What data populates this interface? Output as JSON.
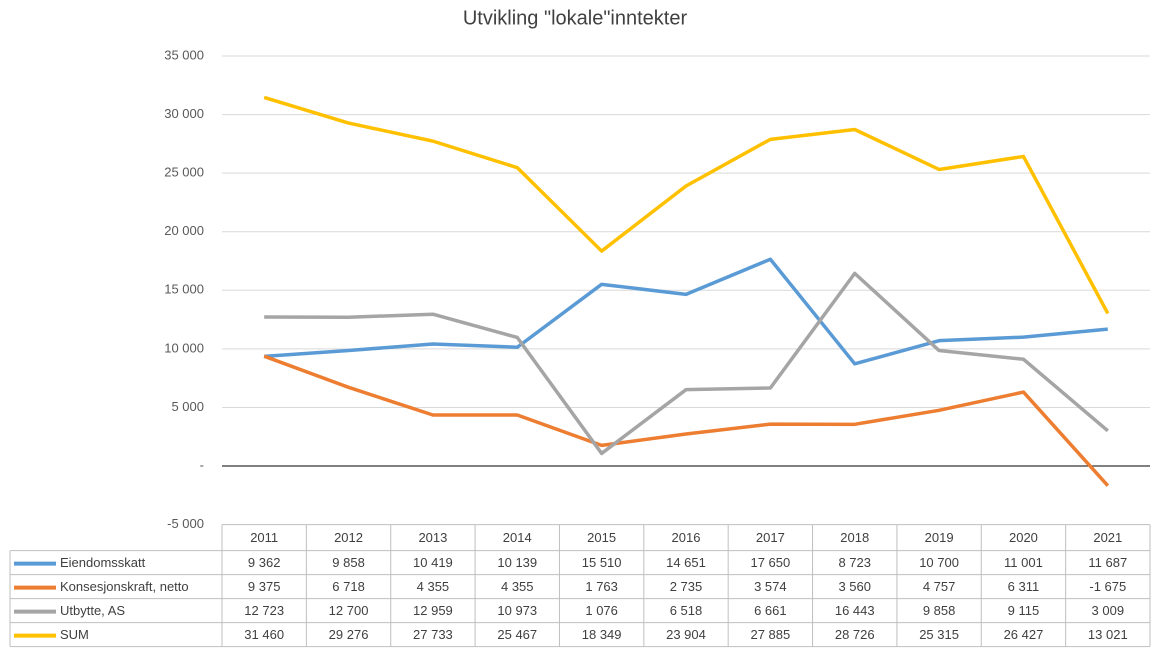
{
  "chart_data": {
    "type": "line",
    "title": "Utvikling \"lokale\"inntekter",
    "categories": [
      "2011",
      "2012",
      "2013",
      "2014",
      "2015",
      "2016",
      "2017",
      "2018",
      "2019",
      "2020",
      "2021"
    ],
    "series": [
      {
        "name": "Eiendomsskatt",
        "color": "#5b9bd5",
        "values": [
          9362,
          9858,
          10419,
          10139,
          15510,
          14651,
          17650,
          8723,
          10700,
          11001,
          11687
        ],
        "value_labels": [
          "9 362",
          "9 858",
          "10 419",
          "10 139",
          "15 510",
          "14 651",
          "17 650",
          "8 723",
          "10 700",
          "11 001",
          "11 687"
        ]
      },
      {
        "name": "Konsesjonskraft, netto",
        "color": "#ed7d31",
        "values": [
          9375,
          6718,
          4355,
          4355,
          1763,
          2735,
          3574,
          3560,
          4757,
          6311,
          -1675
        ],
        "value_labels": [
          "9 375",
          "6 718",
          "4 355",
          "4 355",
          "1 763",
          "2 735",
          "3 574",
          "3 560",
          "4 757",
          "6 311",
          "-1 675"
        ]
      },
      {
        "name": "Utbytte, AS",
        "color": "#a5a5a5",
        "values": [
          12723,
          12700,
          12959,
          10973,
          1076,
          6518,
          6661,
          16443,
          9858,
          9115,
          3009
        ],
        "value_labels": [
          "12 723",
          "12 700",
          "12 959",
          "10 973",
          "1 076",
          "6 518",
          "6 661",
          "16 443",
          "9 858",
          "9 115",
          "3 009"
        ]
      },
      {
        "name": "SUM",
        "color": "#ffc000",
        "values": [
          31460,
          29276,
          27733,
          25467,
          18349,
          23904,
          27885,
          28726,
          25315,
          26427,
          13021
        ],
        "value_labels": [
          "31 460",
          "29 276",
          "27 733",
          "25 467",
          "18 349",
          "23 904",
          "27 885",
          "28 726",
          "25 315",
          "26 427",
          "13 021"
        ]
      }
    ],
    "ylim": [
      -5000,
      35000
    ],
    "yticks": [
      {
        "value": -5000,
        "label": "-5 000"
      },
      {
        "value": 0,
        "label": "-"
      },
      {
        "value": 5000,
        "label": "5 000"
      },
      {
        "value": 10000,
        "label": "10 000"
      },
      {
        "value": 15000,
        "label": "15 000"
      },
      {
        "value": 20000,
        "label": "20 000"
      },
      {
        "value": 25000,
        "label": "25 000"
      },
      {
        "value": 30000,
        "label": "30 000"
      },
      {
        "value": 35000,
        "label": "35 000"
      }
    ],
    "grid": true
  }
}
